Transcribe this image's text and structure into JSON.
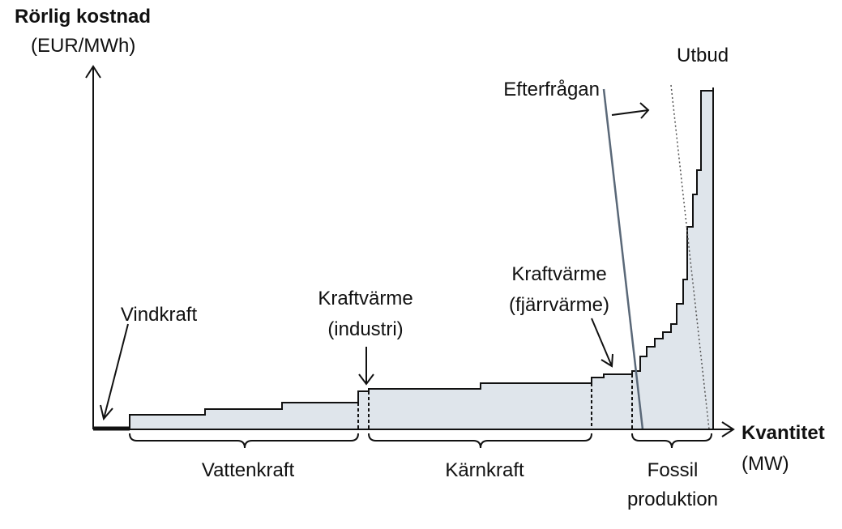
{
  "axes": {
    "y_title": "Rörlig kostnad",
    "y_unit": "(EUR/MWh)",
    "x_title": "Kvantitet",
    "x_unit": "(MW)"
  },
  "curves": {
    "supply": "Utbud",
    "demand": "Efterfrågan"
  },
  "annotations": {
    "wind": "Vindkraft",
    "chp_industry": [
      "Kraftvärme",
      "(industri)"
    ],
    "chp_district": [
      "Kraftvärme",
      "(fjärrvärme)"
    ]
  },
  "groups": {
    "hydro": "Vattenkraft",
    "nuclear": "Kärnkraft",
    "fossil": [
      "Fossil",
      "produktion"
    ]
  }
}
